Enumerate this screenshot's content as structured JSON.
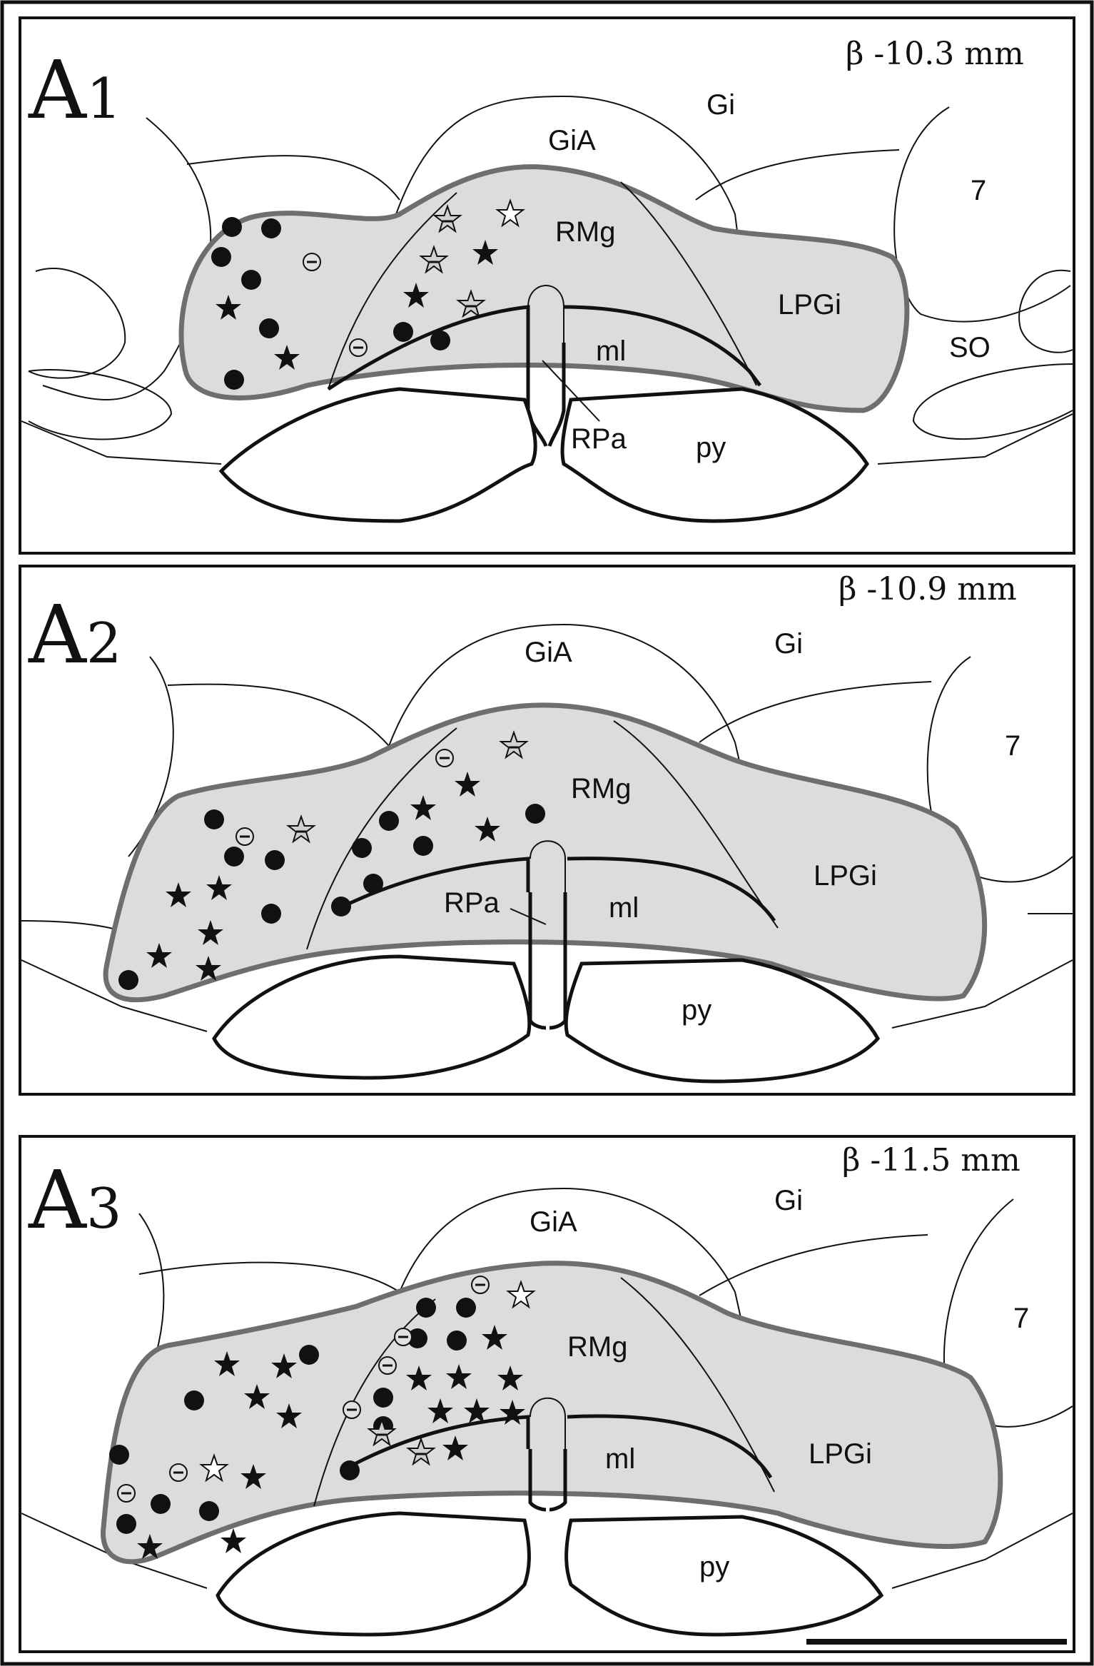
{
  "panels": [
    {
      "label": "A",
      "label_num": "1",
      "coordinate": "β -10.3 mm",
      "regions": {
        "gi": "Gi",
        "gia": "GiA",
        "rmg": "RMg",
        "lpgi": "LPGi",
        "ml": "ml",
        "rpa": "RPa",
        "py": "py",
        "seven": "7",
        "so": "SO"
      }
    },
    {
      "label": "A",
      "label_num": "2",
      "coordinate": "β -10.9 mm",
      "regions": {
        "gi": "Gi",
        "gia": "GiA",
        "rmg": "RMg",
        "lpgi": "LPGi",
        "ml": "ml",
        "rpa": "RPa",
        "py": "py",
        "seven": "7"
      }
    },
    {
      "label": "A",
      "label_num": "3",
      "coordinate": "β -11.5 mm",
      "regions": {
        "gi": "Gi",
        "gia": "GiA",
        "rmg": "RMg",
        "lpgi": "LPGi",
        "ml": "ml",
        "py": "py",
        "seven": "7"
      }
    }
  ],
  "marker_types": [
    "filled-circle",
    "filled-star",
    "open-star",
    "minus-circle",
    "minus-star"
  ],
  "colors": {
    "shaded_region": "#dcdcdc",
    "shaded_outline": "#6e6e6e",
    "lines": "#111111"
  }
}
